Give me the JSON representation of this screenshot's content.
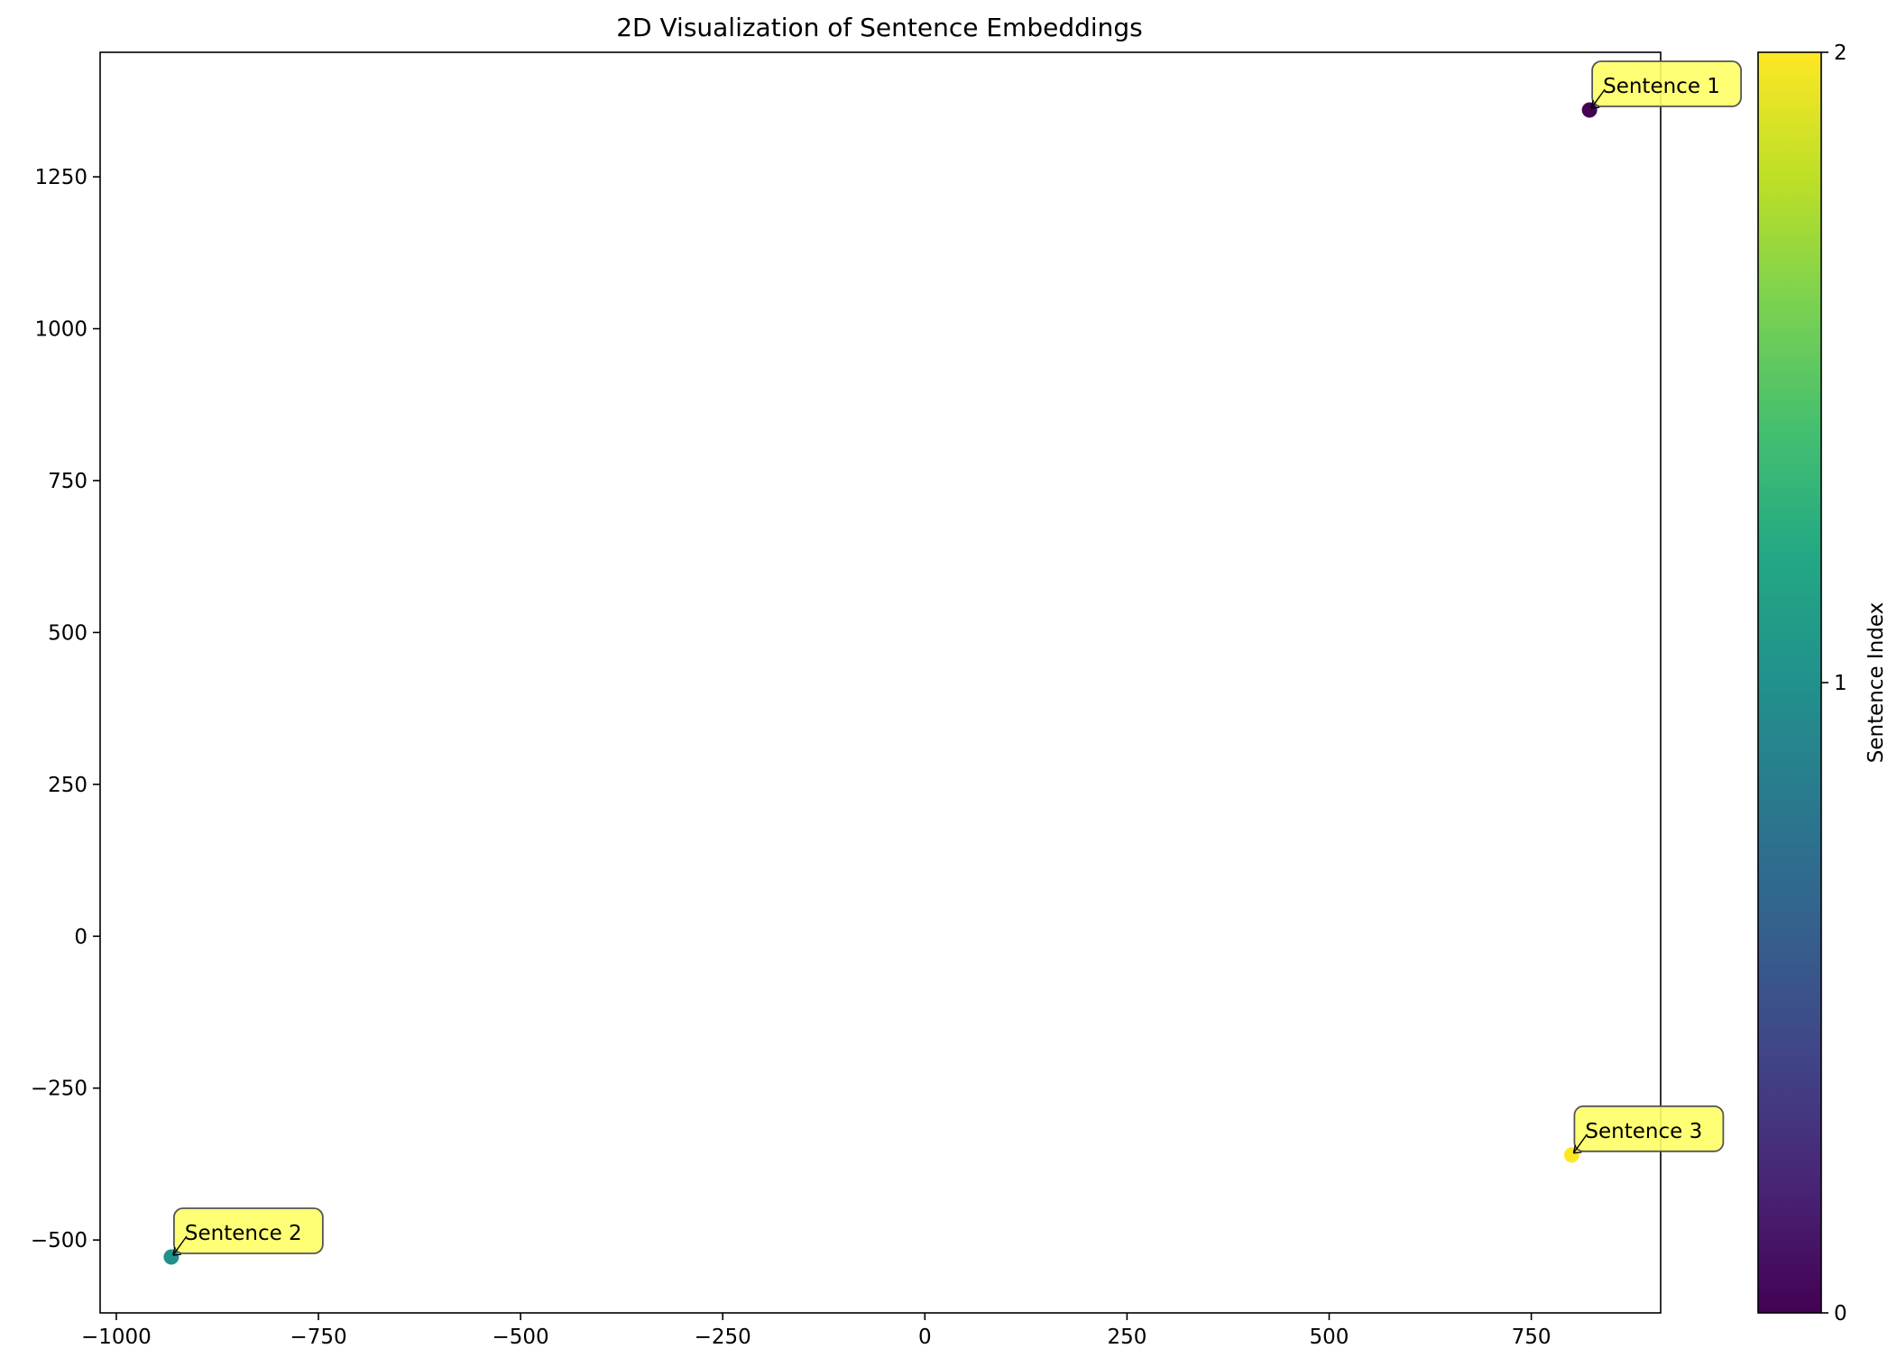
{
  "chart_data": {
    "type": "scatter",
    "title": "2D Visualization of Sentence Embeddings",
    "xlabel": "",
    "ylabel": "",
    "xlim": [
      -1020,
      910
    ],
    "ylim": [
      -620,
      1455
    ],
    "xticks": [
      -1000,
      -750,
      -500,
      -250,
      0,
      250,
      500,
      750
    ],
    "yticks": [
      -500,
      -250,
      0,
      250,
      500,
      750,
      1000,
      1250
    ],
    "grid": false,
    "colormap": "viridis",
    "points": [
      {
        "label": "Sentence 1",
        "x": 822,
        "y": 1360,
        "color_value": 0
      },
      {
        "label": "Sentence 2",
        "x": -932,
        "y": -528,
        "color_value": 1
      },
      {
        "label": "Sentence 3",
        "x": 800,
        "y": -360,
        "color_value": 2
      }
    ],
    "colorbar": {
      "label": "Sentence Index",
      "range": [
        0,
        2
      ],
      "ticks": [
        0,
        1,
        2
      ]
    },
    "annotation_style": {
      "box_fill": "#ffff66",
      "box_edge": "#555555"
    }
  }
}
